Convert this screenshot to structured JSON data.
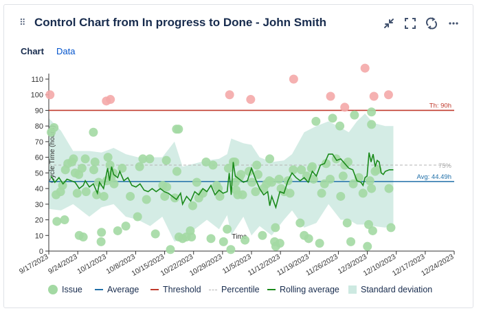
{
  "header": {
    "title": "Control Chart from In progress to Done - John Smith",
    "icons": [
      "minimize-icon",
      "fullscreen-icon",
      "refresh-icon",
      "more-icon"
    ]
  },
  "tabs": [
    {
      "label": "Chart",
      "active": true
    },
    {
      "label": "Data",
      "active": false
    }
  ],
  "legend": {
    "issue": "Issue",
    "average": "Average",
    "threshold": "Threshold",
    "percentile": "Percentile",
    "rolling": "Rolling average",
    "stddev": "Standard deviation"
  },
  "colors": {
    "issue": "#a3d9a3",
    "issue_over": "#f4a9a9",
    "average": "#1f6fa8",
    "threshold": "#c0392b",
    "percentile": "#b3b3b3",
    "rolling": "#1a8a1a",
    "stddev": "#cde9e1"
  },
  "chart_data": {
    "type": "scatter",
    "ylabel": "Cycle Time (hours)",
    "xlabel": "Time",
    "ylim": [
      0,
      110
    ],
    "yticks": [
      0,
      10,
      20,
      30,
      40,
      50,
      60,
      70,
      80,
      90,
      100,
      110
    ],
    "xlim": [
      0,
      100
    ],
    "xticks": [
      "9/17/2023",
      "9/24/2023",
      "10/1/2023",
      "10/8/2023",
      "10/15/2023",
      "10/22/2023",
      "10/29/2023",
      "11/5/2023",
      "11/12/2023",
      "11/19/2023",
      "11/26/2023",
      "12/3/2023",
      "12/10/2023",
      "12/17/2023",
      "12/24/2023"
    ],
    "threshold": 90,
    "threshold_label": "Th: 90h",
    "average": 44.49,
    "average_label": "Avg: 44.49h",
    "percentile": 55,
    "percentile_label": "75%",
    "issues": [
      {
        "x": 1.3,
        "y": 79
      },
      {
        "x": 0.6,
        "y": 76
      },
      {
        "x": 1.8,
        "y": 36
      },
      {
        "x": 2.9,
        "y": 38
      },
      {
        "x": 3.4,
        "y": 42
      },
      {
        "x": 2.0,
        "y": 19
      },
      {
        "x": 3.9,
        "y": 20
      },
      {
        "x": 4.1,
        "y": 52
      },
      {
        "x": 4.7,
        "y": 56
      },
      {
        "x": 5.7,
        "y": 57
      },
      {
        "x": 6.1,
        "y": 59
      },
      {
        "x": 6.5,
        "y": 50
      },
      {
        "x": 7.4,
        "y": 49
      },
      {
        "x": 8.2,
        "y": 53
      },
      {
        "x": 7.0,
        "y": 37
      },
      {
        "x": 7.5,
        "y": 10
      },
      {
        "x": 8.5,
        "y": 9
      },
      {
        "x": 9.2,
        "y": 38
      },
      {
        "x": 9.0,
        "y": 59
      },
      {
        "x": 11.0,
        "y": 76
      },
      {
        "x": 11.1,
        "y": 52
      },
      {
        "x": 11.4,
        "y": 57
      },
      {
        "x": 11.8,
        "y": 36
      },
      {
        "x": 12.3,
        "y": 44
      },
      {
        "x": 13.0,
        "y": 12
      },
      {
        "x": 12.9,
        "y": 6
      },
      {
        "x": 13.6,
        "y": 35
      },
      {
        "x": 14.3,
        "y": 45
      },
      {
        "x": 15.1,
        "y": 55
      },
      {
        "x": 14.6,
        "y": 60
      },
      {
        "x": 15.4,
        "y": 47
      },
      {
        "x": 16.1,
        "y": 43
      },
      {
        "x": 15.9,
        "y": 50
      },
      {
        "x": 17.0,
        "y": 13
      },
      {
        "x": 18.1,
        "y": 53
      },
      {
        "x": 19.0,
        "y": 16
      },
      {
        "x": 20.1,
        "y": 35
      },
      {
        "x": 21.9,
        "y": 22
      },
      {
        "x": 22.4,
        "y": 54
      },
      {
        "x": 23.2,
        "y": 59
      },
      {
        "x": 24.1,
        "y": 33
      },
      {
        "x": 24.9,
        "y": 59
      },
      {
        "x": 26.3,
        "y": 11
      },
      {
        "x": 28.1,
        "y": 42
      },
      {
        "x": 28.6,
        "y": 35
      },
      {
        "x": 29.0,
        "y": 58
      },
      {
        "x": 29.1,
        "y": 41
      },
      {
        "x": 31.1,
        "y": 34
      },
      {
        "x": 31.6,
        "y": 51
      },
      {
        "x": 30.0,
        "y": 1
      },
      {
        "x": 31.5,
        "y": 78
      },
      {
        "x": 32.0,
        "y": 78
      },
      {
        "x": 32.1,
        "y": 9
      },
      {
        "x": 33.0,
        "y": 8
      },
      {
        "x": 33.9,
        "y": 9
      },
      {
        "x": 34.9,
        "y": 13
      },
      {
        "x": 35.2,
        "y": 9
      },
      {
        "x": 35.5,
        "y": 29
      },
      {
        "x": 36.5,
        "y": 44
      },
      {
        "x": 37.0,
        "y": 34
      },
      {
        "x": 38.0,
        "y": 37
      },
      {
        "x": 38.8,
        "y": 57
      },
      {
        "x": 40.0,
        "y": 8
      },
      {
        "x": 40.5,
        "y": 55
      },
      {
        "x": 41.4,
        "y": 42
      },
      {
        "x": 41.8,
        "y": 40
      },
      {
        "x": 42.2,
        "y": 35
      },
      {
        "x": 43.1,
        "y": 6
      },
      {
        "x": 44.0,
        "y": 14
      },
      {
        "x": 44.3,
        "y": 53
      },
      {
        "x": 44.9,
        "y": 1
      },
      {
        "x": 45.5,
        "y": 57
      },
      {
        "x": 45.9,
        "y": 57
      },
      {
        "x": 46.0,
        "y": 44
      },
      {
        "x": 46.2,
        "y": 39
      },
      {
        "x": 46.6,
        "y": 36
      },
      {
        "x": 47.0,
        "y": 47
      },
      {
        "x": 47.4,
        "y": 49
      },
      {
        "x": 47.8,
        "y": 36
      },
      {
        "x": 48.4,
        "y": 7
      },
      {
        "x": 49.4,
        "y": 51
      },
      {
        "x": 50.1,
        "y": 44
      },
      {
        "x": 51.0,
        "y": 38
      },
      {
        "x": 51.3,
        "y": 55
      },
      {
        "x": 51.6,
        "y": 49
      },
      {
        "x": 52.7,
        "y": 10
      },
      {
        "x": 53.0,
        "y": 40
      },
      {
        "x": 53.7,
        "y": 43
      },
      {
        "x": 54.5,
        "y": 59
      },
      {
        "x": 54.4,
        "y": 45
      },
      {
        "x": 55.0,
        "y": 44
      },
      {
        "x": 55.7,
        "y": 6
      },
      {
        "x": 55.9,
        "y": 15
      },
      {
        "x": 56.0,
        "y": 3
      },
      {
        "x": 57.0,
        "y": 5
      },
      {
        "x": 56.8,
        "y": 46
      },
      {
        "x": 57.3,
        "y": 40
      },
      {
        "x": 58.1,
        "y": 38
      },
      {
        "x": 59.0,
        "y": 45
      },
      {
        "x": 59.5,
        "y": 37
      },
      {
        "x": 60.3,
        "y": 52
      },
      {
        "x": 62.0,
        "y": 18
      },
      {
        "x": 62.3,
        "y": 52
      },
      {
        "x": 63.0,
        "y": 10
      },
      {
        "x": 63.6,
        "y": 48
      },
      {
        "x": 64.1,
        "y": 8
      },
      {
        "x": 64.8,
        "y": 53
      },
      {
        "x": 65.0,
        "y": 54
      },
      {
        "x": 65.3,
        "y": 46
      },
      {
        "x": 65.9,
        "y": 83
      },
      {
        "x": 66.8,
        "y": 5
      },
      {
        "x": 67.3,
        "y": 37
      },
      {
        "x": 68.0,
        "y": 43
      },
      {
        "x": 68.4,
        "y": 56
      },
      {
        "x": 69.4,
        "y": 46
      },
      {
        "x": 70.0,
        "y": 85
      },
      {
        "x": 70.9,
        "y": 59
      },
      {
        "x": 71.8,
        "y": 80
      },
      {
        "x": 72.0,
        "y": 35
      },
      {
        "x": 72.6,
        "y": 48
      },
      {
        "x": 73.0,
        "y": 55
      },
      {
        "x": 73.8,
        "y": 57
      },
      {
        "x": 73.6,
        "y": 18
      },
      {
        "x": 74.5,
        "y": 6
      },
      {
        "x": 75.1,
        "y": 43
      },
      {
        "x": 75.4,
        "y": 87
      },
      {
        "x": 76.5,
        "y": 47
      },
      {
        "x": 77.5,
        "y": 37
      },
      {
        "x": 78.6,
        "y": 3
      },
      {
        "x": 78.9,
        "y": 17
      },
      {
        "x": 79.2,
        "y": 45
      },
      {
        "x": 79.6,
        "y": 40
      },
      {
        "x": 79.6,
        "y": 81
      },
      {
        "x": 79.6,
        "y": 89
      },
      {
        "x": 79.9,
        "y": 13
      },
      {
        "x": 80.5,
        "y": 51
      },
      {
        "x": 81.0,
        "y": 52
      },
      {
        "x": 83.9,
        "y": 40
      },
      {
        "x": 84.4,
        "y": 15
      }
    ],
    "issues_over_threshold": [
      {
        "x": 0.3,
        "y": 100
      },
      {
        "x": 14.2,
        "y": 96
      },
      {
        "x": 15.2,
        "y": 97
      },
      {
        "x": 44.6,
        "y": 100
      },
      {
        "x": 49.8,
        "y": 97
      },
      {
        "x": 60.4,
        "y": 110
      },
      {
        "x": 69.5,
        "y": 99
      },
      {
        "x": 73.0,
        "y": 92
      },
      {
        "x": 78.0,
        "y": 117
      },
      {
        "x": 80.2,
        "y": 99
      },
      {
        "x": 83.8,
        "y": 100
      }
    ],
    "rolling_average": [
      {
        "x": 0.5,
        "y": 48
      },
      {
        "x": 1.5,
        "y": 44
      },
      {
        "x": 2.5,
        "y": 47
      },
      {
        "x": 3.5,
        "y": 43
      },
      {
        "x": 4.5,
        "y": 46
      },
      {
        "x": 5.5,
        "y": 45
      },
      {
        "x": 6.5,
        "y": 44
      },
      {
        "x": 7.5,
        "y": 40
      },
      {
        "x": 8.5,
        "y": 42
      },
      {
        "x": 9.0,
        "y": 45
      },
      {
        "x": 10.0,
        "y": 41
      },
      {
        "x": 11.0,
        "y": 43
      },
      {
        "x": 12.0,
        "y": 37
      },
      {
        "x": 12.5,
        "y": 44
      },
      {
        "x": 13.5,
        "y": 40
      },
      {
        "x": 14.5,
        "y": 53
      },
      {
        "x": 15.0,
        "y": 45
      },
      {
        "x": 15.5,
        "y": 54
      },
      {
        "x": 16.0,
        "y": 49
      },
      {
        "x": 17.0,
        "y": 47
      },
      {
        "x": 17.5,
        "y": 51
      },
      {
        "x": 18.5,
        "y": 45
      },
      {
        "x": 19.5,
        "y": 47
      },
      {
        "x": 20.5,
        "y": 42
      },
      {
        "x": 21.5,
        "y": 41
      },
      {
        "x": 22.5,
        "y": 43
      },
      {
        "x": 23.5,
        "y": 39
      },
      {
        "x": 24.5,
        "y": 38
      },
      {
        "x": 25.5,
        "y": 40
      },
      {
        "x": 26.5,
        "y": 38
      },
      {
        "x": 27.5,
        "y": 40
      },
      {
        "x": 28.5,
        "y": 38
      },
      {
        "x": 29.5,
        "y": 37
      },
      {
        "x": 30.5,
        "y": 35
      },
      {
        "x": 31.5,
        "y": 33
      },
      {
        "x": 32.5,
        "y": 37
      },
      {
        "x": 33.0,
        "y": 30
      },
      {
        "x": 34.0,
        "y": 35
      },
      {
        "x": 35.0,
        "y": 32
      },
      {
        "x": 36.0,
        "y": 38
      },
      {
        "x": 37.0,
        "y": 36
      },
      {
        "x": 38.0,
        "y": 40
      },
      {
        "x": 39.0,
        "y": 38
      },
      {
        "x": 40.0,
        "y": 42
      },
      {
        "x": 41.0,
        "y": 36
      },
      {
        "x": 42.0,
        "y": 39
      },
      {
        "x": 43.0,
        "y": 37
      },
      {
        "x": 44.0,
        "y": 38
      },
      {
        "x": 44.5,
        "y": 50
      },
      {
        "x": 45.0,
        "y": 36
      },
      {
        "x": 45.5,
        "y": 57
      },
      {
        "x": 46.0,
        "y": 48
      },
      {
        "x": 47.0,
        "y": 46
      },
      {
        "x": 48.0,
        "y": 44
      },
      {
        "x": 49.0,
        "y": 45
      },
      {
        "x": 50.0,
        "y": 53
      },
      {
        "x": 51.0,
        "y": 46
      },
      {
        "x": 52.0,
        "y": 40
      },
      {
        "x": 53.0,
        "y": 36
      },
      {
        "x": 54.0,
        "y": 38
      },
      {
        "x": 54.5,
        "y": 29
      },
      {
        "x": 55.0,
        "y": 35
      },
      {
        "x": 56.0,
        "y": 28
      },
      {
        "x": 57.0,
        "y": 38
      },
      {
        "x": 58.0,
        "y": 37
      },
      {
        "x": 59.0,
        "y": 45
      },
      {
        "x": 60.0,
        "y": 50
      },
      {
        "x": 61.0,
        "y": 47
      },
      {
        "x": 62.0,
        "y": 45
      },
      {
        "x": 63.0,
        "y": 47
      },
      {
        "x": 64.0,
        "y": 44
      },
      {
        "x": 65.0,
        "y": 51
      },
      {
        "x": 66.0,
        "y": 48
      },
      {
        "x": 67.0,
        "y": 55
      },
      {
        "x": 68.0,
        "y": 56
      },
      {
        "x": 69.0,
        "y": 62
      },
      {
        "x": 70.0,
        "y": 62
      },
      {
        "x": 71.0,
        "y": 58
      },
      {
        "x": 72.0,
        "y": 59
      },
      {
        "x": 73.0,
        "y": 56
      },
      {
        "x": 74.0,
        "y": 53
      },
      {
        "x": 75.0,
        "y": 52
      },
      {
        "x": 76.0,
        "y": 45
      },
      {
        "x": 77.0,
        "y": 44
      },
      {
        "x": 77.5,
        "y": 42
      },
      {
        "x": 78.0,
        "y": 47
      },
      {
        "x": 78.5,
        "y": 48
      },
      {
        "x": 79.0,
        "y": 63
      },
      {
        "x": 79.5,
        "y": 57
      },
      {
        "x": 80.0,
        "y": 62
      },
      {
        "x": 80.5,
        "y": 54
      },
      {
        "x": 81.0,
        "y": 58
      },
      {
        "x": 81.5,
        "y": 57
      },
      {
        "x": 82.0,
        "y": 50
      },
      {
        "x": 82.5,
        "y": 49
      },
      {
        "x": 83.0,
        "y": 51
      },
      {
        "x": 84.0,
        "y": 52
      },
      {
        "x": 85.0,
        "y": 52
      }
    ],
    "std_upper": [
      {
        "x": 0,
        "y": 85
      },
      {
        "x": 3,
        "y": 77
      },
      {
        "x": 6,
        "y": 64
      },
      {
        "x": 10,
        "y": 64
      },
      {
        "x": 13,
        "y": 63
      },
      {
        "x": 16,
        "y": 66
      },
      {
        "x": 19,
        "y": 62
      },
      {
        "x": 22,
        "y": 60
      },
      {
        "x": 25,
        "y": 60
      },
      {
        "x": 28,
        "y": 60
      },
      {
        "x": 31,
        "y": 70
      },
      {
        "x": 33,
        "y": 54
      },
      {
        "x": 36,
        "y": 56
      },
      {
        "x": 39,
        "y": 58
      },
      {
        "x": 42,
        "y": 59
      },
      {
        "x": 44,
        "y": 62
      },
      {
        "x": 45,
        "y": 72
      },
      {
        "x": 48,
        "y": 69
      },
      {
        "x": 50,
        "y": 68
      },
      {
        "x": 52,
        "y": 60
      },
      {
        "x": 55,
        "y": 57
      },
      {
        "x": 58,
        "y": 58
      },
      {
        "x": 60,
        "y": 62
      },
      {
        "x": 63,
        "y": 76
      },
      {
        "x": 66,
        "y": 80
      },
      {
        "x": 69,
        "y": 83
      },
      {
        "x": 72,
        "y": 79
      },
      {
        "x": 74,
        "y": 76
      },
      {
        "x": 76,
        "y": 83
      },
      {
        "x": 78,
        "y": 88
      },
      {
        "x": 80,
        "y": 82
      },
      {
        "x": 83,
        "y": 80
      },
      {
        "x": 85,
        "y": 80
      }
    ],
    "std_lower": [
      {
        "x": 0,
        "y": 27
      },
      {
        "x": 3,
        "y": 26
      },
      {
        "x": 6,
        "y": 30
      },
      {
        "x": 10,
        "y": 22
      },
      {
        "x": 13,
        "y": 28
      },
      {
        "x": 16,
        "y": 30
      },
      {
        "x": 19,
        "y": 22
      },
      {
        "x": 22,
        "y": 20
      },
      {
        "x": 25,
        "y": 16
      },
      {
        "x": 28,
        "y": 22
      },
      {
        "x": 31,
        "y": 6
      },
      {
        "x": 33,
        "y": 8
      },
      {
        "x": 36,
        "y": 14
      },
      {
        "x": 39,
        "y": 20
      },
      {
        "x": 42,
        "y": 14
      },
      {
        "x": 44,
        "y": 23
      },
      {
        "x": 45,
        "y": 10
      },
      {
        "x": 48,
        "y": 22
      },
      {
        "x": 50,
        "y": 10
      },
      {
        "x": 52,
        "y": 16
      },
      {
        "x": 55,
        "y": 10
      },
      {
        "x": 58,
        "y": 20
      },
      {
        "x": 60,
        "y": 26
      },
      {
        "x": 63,
        "y": 15
      },
      {
        "x": 66,
        "y": 18
      },
      {
        "x": 69,
        "y": 30
      },
      {
        "x": 72,
        "y": 20
      },
      {
        "x": 74,
        "y": 20
      },
      {
        "x": 76,
        "y": 17
      },
      {
        "x": 78,
        "y": 17
      },
      {
        "x": 80,
        "y": 16
      },
      {
        "x": 83,
        "y": 15
      },
      {
        "x": 85,
        "y": 17
      }
    ]
  }
}
